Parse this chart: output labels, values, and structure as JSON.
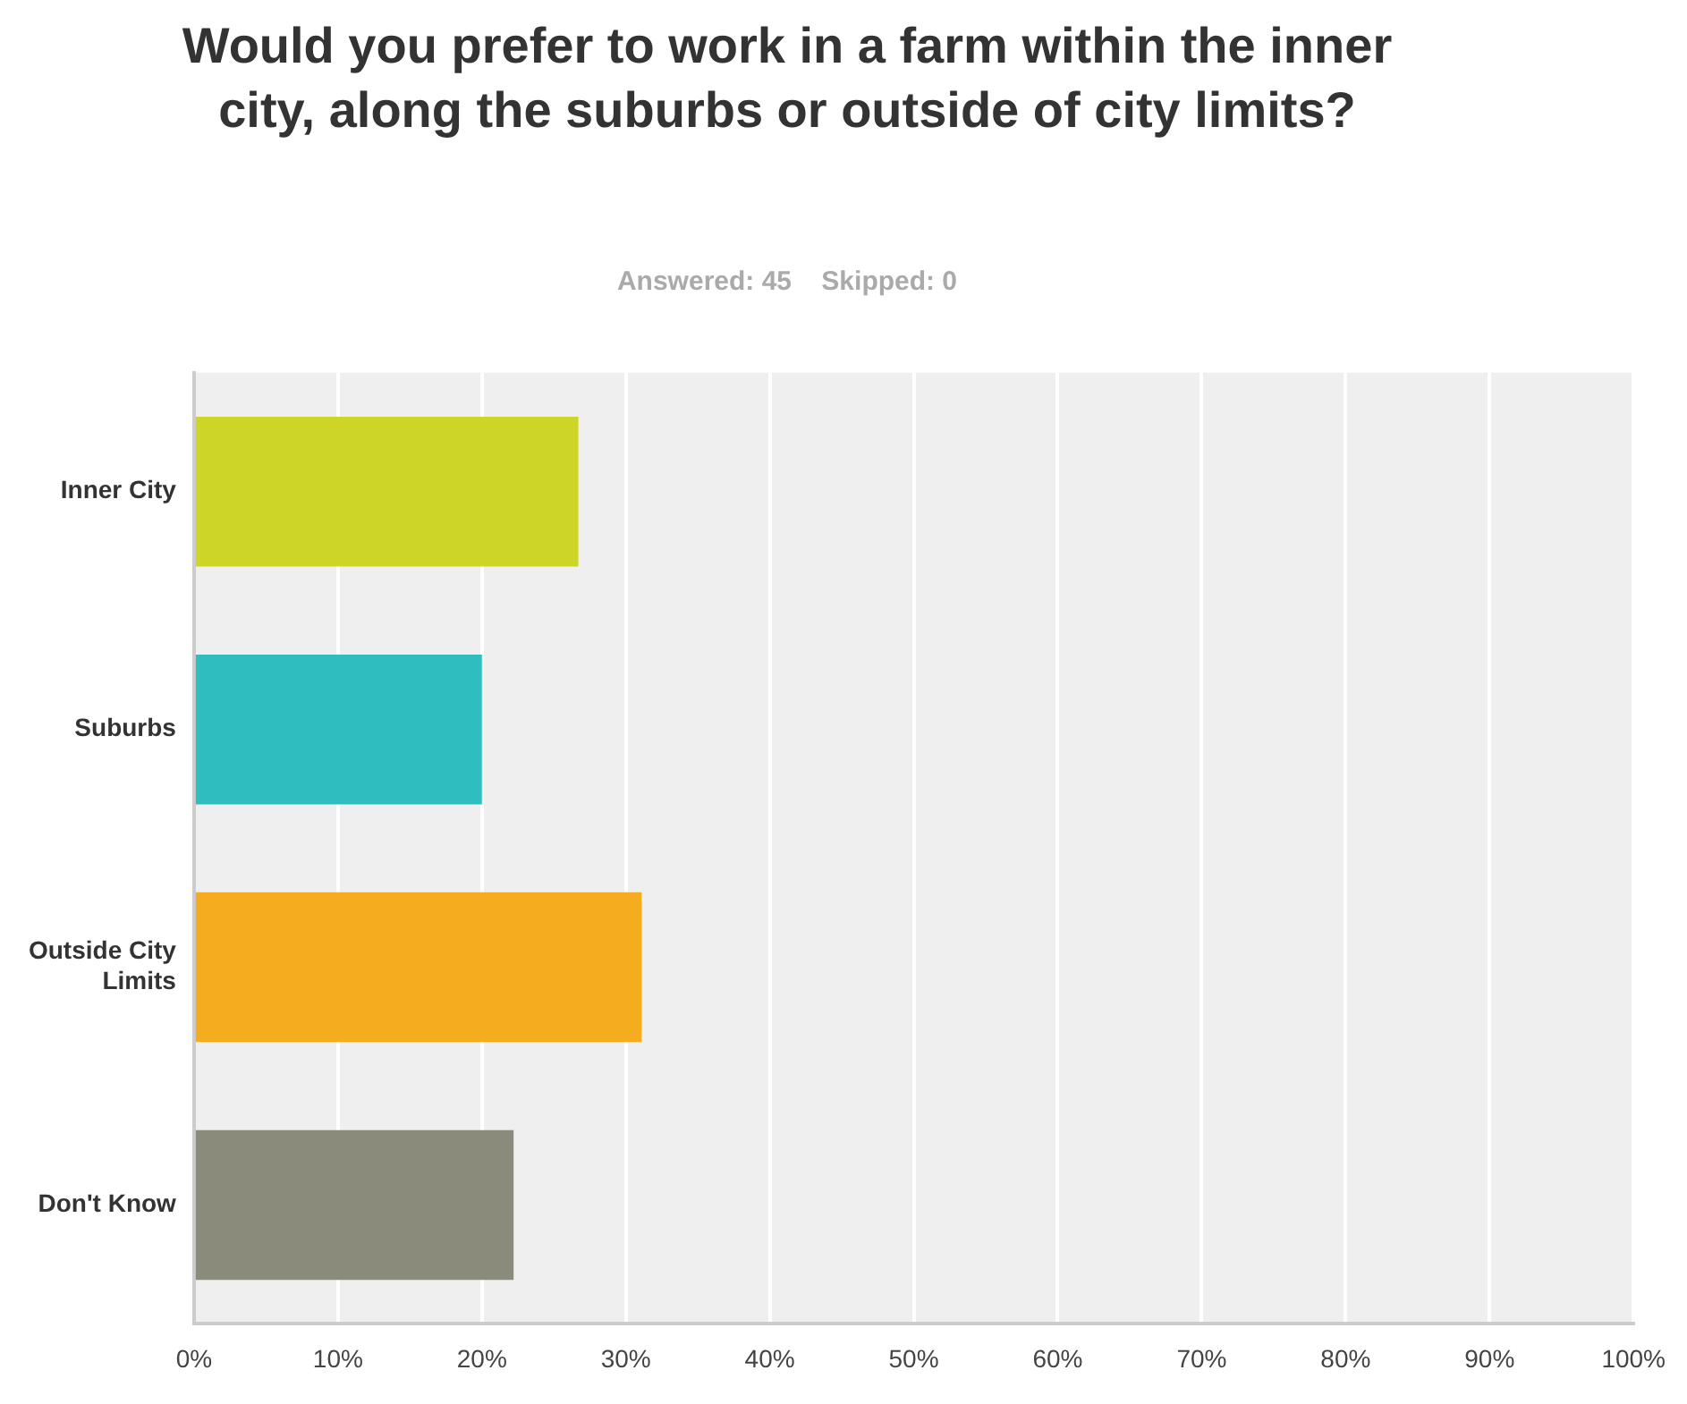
{
  "chart_data": {
    "type": "bar",
    "orientation": "horizontal",
    "title": "Would you prefer to work in a farm within the inner city, along the suburbs or outside of city limits?",
    "subtitle": "Answered: 45    Skipped: 0",
    "categories": [
      "Inner City",
      "Suburbs",
      "Outside City Limits",
      "Don't Know"
    ],
    "values": [
      26.7,
      20,
      31.1,
      22.2
    ],
    "colors": [
      "#cdd626",
      "#2fbdbf",
      "#f5ad1f",
      "#8a8b7a"
    ],
    "xlim": [
      0,
      100
    ],
    "xticks": [
      {
        "value": 0,
        "label": "0%"
      },
      {
        "value": 10,
        "label": "10%"
      },
      {
        "value": 20,
        "label": "20%"
      },
      {
        "value": 30,
        "label": "30%"
      },
      {
        "value": 40,
        "label": "40%"
      },
      {
        "value": 50,
        "label": "50%"
      },
      {
        "value": 60,
        "label": "60%"
      },
      {
        "value": 70,
        "label": "70%"
      },
      {
        "value": 80,
        "label": "80%"
      },
      {
        "value": 90,
        "label": "90%"
      },
      {
        "value": 100,
        "label": "100%"
      }
    ],
    "grid": "x",
    "legend": false
  }
}
